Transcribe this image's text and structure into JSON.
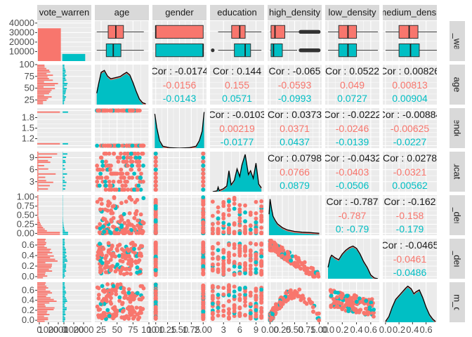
{
  "chart_data": {
    "type": "scatter",
    "variables": [
      "vote_warren",
      "age",
      "gender",
      "education",
      "high_density",
      "low_density",
      "medium_density"
    ],
    "column_strips": [
      "vote_warren",
      "age",
      "gender",
      "education",
      "high_density",
      "low_density",
      "medium_densit"
    ],
    "row_strips": [
      "ote_warre",
      "age",
      "gender",
      "education",
      "igh_densit",
      "ow_densit",
      "dium_den"
    ],
    "groups": [
      {
        "name": "0",
        "color": "#F8766D"
      },
      {
        "name": "1",
        "color": "#00BFC4"
      }
    ],
    "axes": [
      {
        "range": [
          0,
          2
        ],
        "ticks": [],
        "tick_labels": []
      },
      {
        "range": [
          15,
          100
        ],
        "ticks": [
          25,
          50,
          75,
          100
        ],
        "tick_labels": [
          "25",
          "50",
          "75",
          "100"
        ]
      },
      {
        "range": [
          0.93,
          2.07
        ],
        "ticks": [
          1,
          1.25,
          1.5,
          1.75,
          2
        ],
        "tick_labels": [
          "1.00",
          "1.25",
          "1.50",
          "1.75",
          "2.00"
        ]
      },
      {
        "range": [
          0.5,
          10.5
        ],
        "ticks": [
          3,
          6,
          9
        ],
        "tick_labels": [
          "3",
          "6",
          "9"
        ]
      },
      {
        "range": [
          -0.05,
          1.05
        ],
        "ticks": [
          0,
          0.25,
          0.5,
          0.75,
          1
        ],
        "tick_labels": [
          "0.00",
          "0.25",
          "0.50",
          "0.75",
          "1.00"
        ]
      },
      {
        "range": [
          -0.04,
          0.72
        ],
        "ticks": [
          0,
          0.2,
          0.4,
          0.6
        ],
        "tick_labels": [
          "0.0",
          "0.2",
          "0.4",
          "0.6"
        ]
      },
      {
        "range": [
          -0.04,
          0.76
        ],
        "ticks": [
          0,
          0.2,
          0.4,
          0.6
        ],
        "tick_labels": [
          "0.0",
          "0.2",
          "0.4",
          "0.6"
        ]
      }
    ],
    "first_col_x_labels": [
      "0",
      "1000",
      "2000",
      "0",
      "1000",
      "2000"
    ],
    "bar_counts": {
      "range": [
        0,
        40000
      ],
      "ticks": [
        10000,
        20000,
        30000,
        40000
      ],
      "tick_labels": [
        "10000",
        "20000",
        "30000",
        "40000"
      ],
      "values": [
        34500,
        7500
      ]
    },
    "gender_ticks": {
      "ticks": [
        1.2,
        1.5,
        1.8
      ],
      "tick_labels": [
        "1.2",
        "1.5",
        "1.8"
      ]
    },
    "boxplots": [
      {
        "var": "age",
        "box": [
          [
            36,
            48,
            60
          ],
          [
            33,
            44,
            56
          ]
        ],
        "whisker": [
          [
            18,
            92
          ],
          [
            18,
            92
          ]
        ]
      },
      {
        "var": "gender",
        "box": [
          [
            1,
            1,
            2
          ],
          [
            1,
            2,
            2
          ]
        ],
        "whisker": [
          [
            1,
            2
          ],
          [
            1,
            2
          ]
        ]
      },
      {
        "var": "education",
        "box": [
          [
            4.5,
            6,
            7
          ],
          [
            5,
            7,
            8
          ]
        ],
        "whisker": [
          [
            2,
            10
          ],
          [
            2,
            10
          ]
        ]
      },
      {
        "var": "high_density",
        "box": [
          [
            0.02,
            0.1,
            0.3
          ],
          [
            0.02,
            0.07,
            0.25
          ]
        ],
        "whisker": [
          [
            0,
            0.6
          ],
          [
            0,
            0.55
          ]
        ]
      },
      {
        "var": "low_density",
        "box": [
          [
            0.15,
            0.28,
            0.4
          ],
          [
            0.15,
            0.28,
            0.4
          ]
        ],
        "whisker": [
          [
            0,
            0.7
          ],
          [
            0,
            0.7
          ]
        ]
      },
      {
        "var": "medium_density",
        "box": [
          [
            0.2,
            0.35,
            0.48
          ],
          [
            0.2,
            0.37,
            0.5
          ]
        ],
        "whisker": [
          [
            0,
            0.76
          ],
          [
            0,
            0.76
          ]
        ]
      }
    ],
    "correlations": [
      {
        "row": 1,
        "col": 2,
        "overall": "Cor : -0.0174",
        "g0": "-0.0156",
        "g1": "-0.0143"
      },
      {
        "row": 1,
        "col": 3,
        "overall": "Cor : 0.144",
        "g0": "0.155",
        "g1": "0.0571"
      },
      {
        "row": 1,
        "col": 4,
        "overall": "Cor : -0.065",
        "g0": "-0.0593",
        "g1": "-0.0993"
      },
      {
        "row": 1,
        "col": 5,
        "overall": "Cor : 0.0522",
        "g0": "0.049",
        "g1": "0.0727"
      },
      {
        "row": 1,
        "col": 6,
        "overall": "Cor : 0.00826",
        "g0": "0.00813",
        "g1": "0.00904"
      },
      {
        "row": 2,
        "col": 3,
        "overall": "Cor : -0.0103",
        "g0": "0.00219",
        "g1": "-0.0177"
      },
      {
        "row": 2,
        "col": 4,
        "overall": "Cor : 0.0373",
        "g0": "0.0371",
        "g1": "0.0437"
      },
      {
        "row": 2,
        "col": 5,
        "overall": "Cor : -0.0222",
        "g0": "-0.0246",
        "g1": "-0.0139"
      },
      {
        "row": 2,
        "col": 6,
        "overall": "Cor : -0.00884",
        "g0": "-0.00625",
        "g1": "-0.0227"
      },
      {
        "row": 3,
        "col": 4,
        "overall": "Cor : 0.0798",
        "g0": "0.0766",
        "g1": "0.0879"
      },
      {
        "row": 3,
        "col": 5,
        "overall": "Cor : -0.0432",
        "g0": "-0.0403",
        "g1": "-0.0506"
      },
      {
        "row": 3,
        "col": 6,
        "overall": "Cor : 0.0278",
        "g0": "-0.0321",
        "g1": "0.00562"
      },
      {
        "row": 4,
        "col": 5,
        "overall": "Cor : -0.787",
        "g0": "-0.787",
        "g1": "0: -0.79"
      },
      {
        "row": 4,
        "col": 6,
        "overall": "Cor : -0.162",
        "g0": "-0.158",
        "g1": "-0.179"
      },
      {
        "row": 5,
        "col": 6,
        "overall": "Cor : -0.0465",
        "g0": "-0.0461",
        "g1": "-0.0486"
      }
    ],
    "densities": [
      {
        "var": "age",
        "points": [
          [
            18,
            0.3
          ],
          [
            21,
            0.55
          ],
          [
            25,
            0.85
          ],
          [
            30,
            0.9
          ],
          [
            35,
            0.75
          ],
          [
            40,
            0.68
          ],
          [
            45,
            0.7
          ],
          [
            50,
            0.72
          ],
          [
            55,
            0.74
          ],
          [
            60,
            0.8
          ],
          [
            65,
            0.85
          ],
          [
            70,
            0.78
          ],
          [
            75,
            0.58
          ],
          [
            80,
            0.35
          ],
          [
            85,
            0.15
          ],
          [
            90,
            0.05
          ],
          [
            95,
            0.02
          ]
        ]
      },
      {
        "var": "gender",
        "points": [
          [
            0.98,
            0.9
          ],
          [
            1.02,
            0.55
          ],
          [
            1.08,
            0.2
          ],
          [
            1.15,
            0.05
          ],
          [
            1.3,
            0.01
          ],
          [
            1.5,
            0.0
          ],
          [
            1.7,
            0.01
          ],
          [
            1.85,
            0.05
          ],
          [
            1.92,
            0.2
          ],
          [
            1.98,
            0.45
          ],
          [
            2.02,
            0.95
          ]
        ]
      },
      {
        "var": "education",
        "points": [
          [
            1,
            0
          ],
          [
            1.8,
            0.02
          ],
          [
            2,
            0.12
          ],
          [
            2.2,
            0.03
          ],
          [
            3,
            0.08
          ],
          [
            3.6,
            0.15
          ],
          [
            4,
            0.55
          ],
          [
            4.4,
            0.18
          ],
          [
            5,
            0.3
          ],
          [
            5.5,
            0.6
          ],
          [
            6,
            0.4
          ],
          [
            6.4,
            0.7
          ],
          [
            7,
            0.98
          ],
          [
            7.6,
            0.45
          ],
          [
            8,
            0.55
          ],
          [
            8.5,
            0.35
          ],
          [
            9,
            0.75
          ],
          [
            9.5,
            0.2
          ],
          [
            10,
            0.1
          ]
        ]
      },
      {
        "var": "high_density",
        "points": [
          [
            -0.02,
            0.55
          ],
          [
            0,
            0.95
          ],
          [
            0.03,
            0.7
          ],
          [
            0.06,
            0.5
          ],
          [
            0.1,
            0.4
          ],
          [
            0.15,
            0.3
          ],
          [
            0.25,
            0.2
          ],
          [
            0.35,
            0.14
          ],
          [
            0.5,
            0.1
          ],
          [
            0.65,
            0.08
          ],
          [
            0.8,
            0.07
          ],
          [
            0.9,
            0.06
          ],
          [
            1,
            0.05
          ]
        ]
      },
      {
        "var": "low_density",
        "points": [
          [
            0,
            0.3
          ],
          [
            0.03,
            0.55
          ],
          [
            0.05,
            0.62
          ],
          [
            0.1,
            0.55
          ],
          [
            0.15,
            0.5
          ],
          [
            0.2,
            0.65
          ],
          [
            0.25,
            0.75
          ],
          [
            0.3,
            0.82
          ],
          [
            0.35,
            0.86
          ],
          [
            0.4,
            0.8
          ],
          [
            0.45,
            0.65
          ],
          [
            0.5,
            0.45
          ],
          [
            0.55,
            0.3
          ],
          [
            0.6,
            0.1
          ],
          [
            0.65,
            0.02
          ],
          [
            0.7,
            0
          ]
        ]
      },
      {
        "var": "medium_density",
        "points": [
          [
            0,
            0.02
          ],
          [
            0.05,
            0.15
          ],
          [
            0.1,
            0.4
          ],
          [
            0.15,
            0.6
          ],
          [
            0.2,
            0.7
          ],
          [
            0.25,
            0.8
          ],
          [
            0.3,
            0.9
          ],
          [
            0.33,
            0.95
          ],
          [
            0.38,
            0.88
          ],
          [
            0.42,
            0.75
          ],
          [
            0.45,
            0.8
          ],
          [
            0.5,
            0.85
          ],
          [
            0.55,
            0.65
          ],
          [
            0.6,
            0.4
          ],
          [
            0.65,
            0.2
          ],
          [
            0.7,
            0.08
          ],
          [
            0.74,
            0.02
          ]
        ]
      }
    ],
    "grid": true,
    "legend": "none"
  }
}
